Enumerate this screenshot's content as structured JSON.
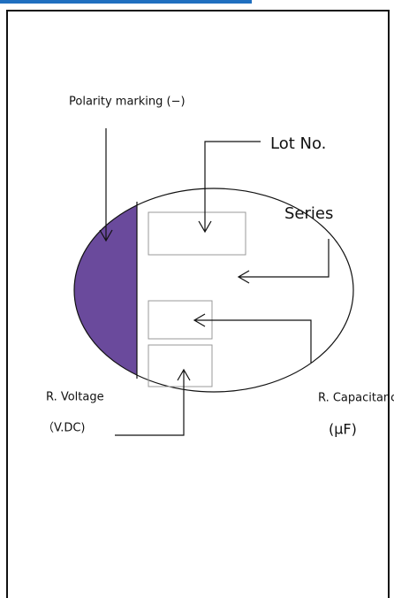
{
  "labels": {
    "polarity": "Polarity marking (−)",
    "lot": "Lot No.",
    "series": "Series",
    "capacitance": "R. Capacitance",
    "capacitance_unit": "(μF)",
    "voltage": "R. Voltage",
    "voltage_unit": "（V.DC)"
  }
}
